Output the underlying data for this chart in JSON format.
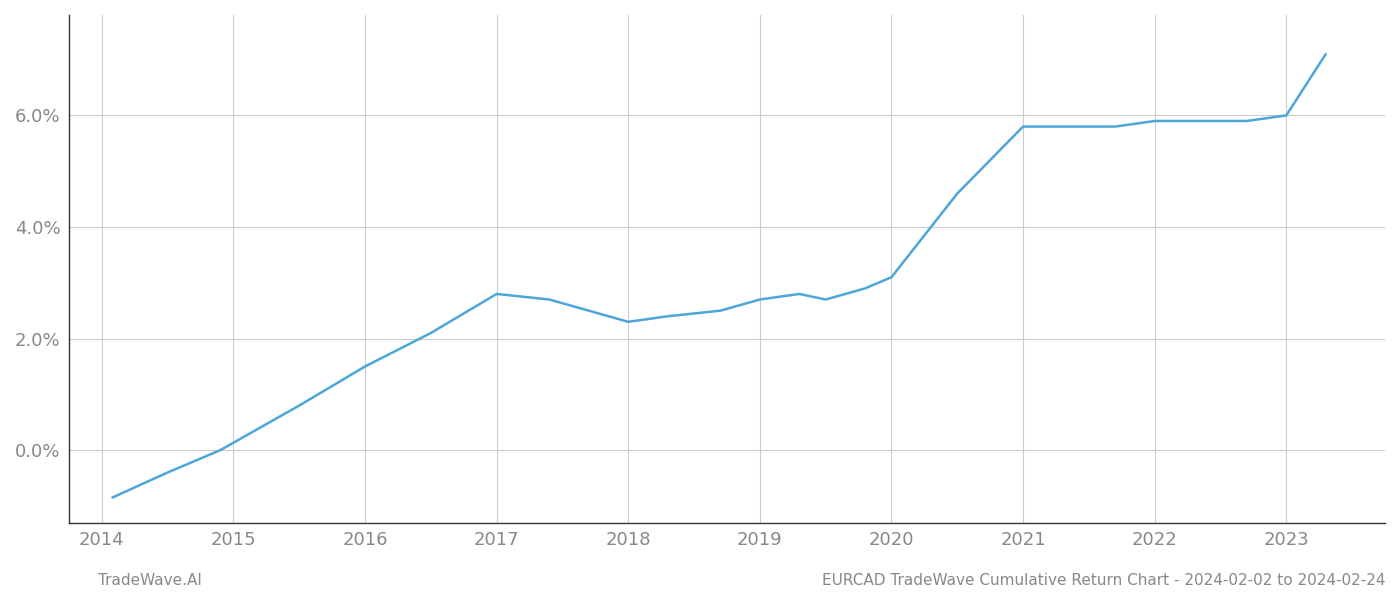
{
  "x_years": [
    2014.08,
    2014.5,
    2014.9,
    2015.5,
    2016.0,
    2016.5,
    2017.0,
    2017.4,
    2017.7,
    2018.0,
    2018.3,
    2018.7,
    2019.0,
    2019.3,
    2019.5,
    2019.8,
    2020.0,
    2020.5,
    2021.0,
    2021.3,
    2021.7,
    2022.0,
    2022.3,
    2022.7,
    2023.0,
    2023.3
  ],
  "y_values": [
    -0.0085,
    -0.004,
    0.0,
    0.008,
    0.015,
    0.021,
    0.028,
    0.027,
    0.025,
    0.023,
    0.024,
    0.025,
    0.027,
    0.028,
    0.027,
    0.029,
    0.031,
    0.046,
    0.058,
    0.058,
    0.058,
    0.059,
    0.059,
    0.059,
    0.06,
    0.071
  ],
  "line_color": "#4da6d9",
  "line_width": 1.8,
  "footer_left": "TradeWave.AI",
  "footer_right": "EURCAD TradeWave Cumulative Return Chart - 2024-02-02 to 2024-02-24",
  "x_ticks": [
    2014,
    2015,
    2016,
    2017,
    2018,
    2019,
    2020,
    2021,
    2022,
    2023
  ],
  "y_ticks": [
    0.0,
    0.02,
    0.04,
    0.06
  ],
  "y_tick_labels": [
    "0.0%",
    "2.0%",
    "4.0%",
    "6.0%"
  ],
  "xlim": [
    2013.75,
    2023.75
  ],
  "ylim": [
    -0.013,
    0.078
  ],
  "background_color": "#ffffff",
  "grid_color": "#cccccc",
  "tick_label_color": "#888888",
  "footer_color": "#888888",
  "left_spine_color": "#333333",
  "bottom_spine_color": "#333333"
}
